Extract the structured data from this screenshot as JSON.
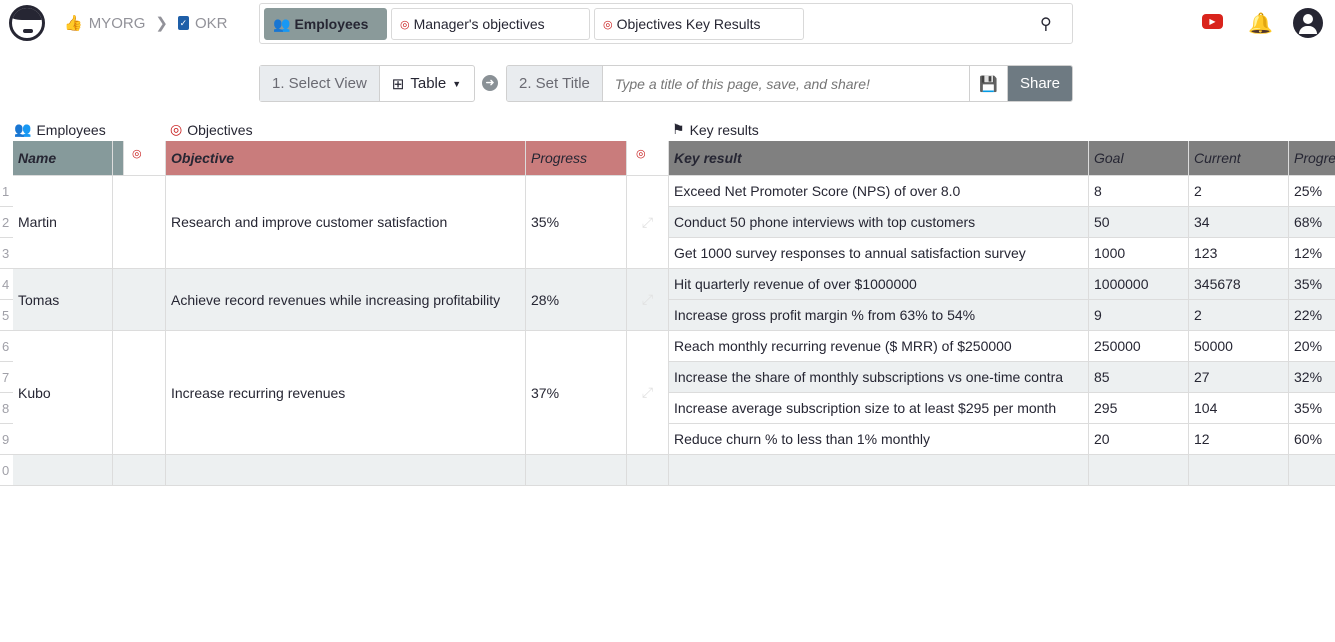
{
  "breadcrumb": {
    "org": "MYORG",
    "doc": "OKR"
  },
  "pages": [
    {
      "label": "Employees",
      "active": true
    },
    {
      "label": "Manager's objectives"
    },
    {
      "label": "Objectives Key Results"
    }
  ],
  "toolbar": {
    "step1": "1. Select View",
    "view": "Table",
    "step2": "2. Set Title",
    "title_placeholder": "Type a title of this page, save, and share!",
    "share": "Share"
  },
  "sections": {
    "employees": "Employees",
    "objectives": "Objectives",
    "key_results": "Key results"
  },
  "columns": {
    "name": "Name",
    "objective": "Objective",
    "progress": "Progress",
    "key_result": "Key result",
    "goal": "Goal",
    "current": "Current",
    "kr_progress": "Progre"
  },
  "groups": [
    {
      "name": "Martin",
      "objective": "Research and improve customer satisfaction",
      "progress": "35%",
      "rows": 3
    },
    {
      "name": "Tomas",
      "objective": "Achieve record revenues while increasing profitability",
      "progress": "28%",
      "rows": 2
    },
    {
      "name": "Kubo",
      "objective": "Increase recurring revenues",
      "progress": "37%",
      "rows": 4
    }
  ],
  "key_results": [
    [
      "Exceed Net Promoter Score (NPS) of over 8.0",
      "8",
      "2",
      "25%"
    ],
    [
      "Conduct 50 phone interviews with top customers",
      "50",
      "34",
      "68%"
    ],
    [
      "Get 1000 survey responses to annual satisfaction survey",
      "1000",
      "123",
      "12%"
    ],
    [
      "Hit quarterly revenue of over $1000000",
      "1000000",
      "345678",
      "35%"
    ],
    [
      "Increase gross profit margin % from 63% to 54%",
      "9",
      "2",
      "22%"
    ],
    [
      "Reach monthly recurring revenue ($ MRR) of $250000",
      "250000",
      "50000",
      "20%"
    ],
    [
      "Increase the share of monthly subscriptions vs one-time contra",
      "85",
      "27",
      "32%"
    ],
    [
      "Increase average subscription size to at least $295 per month",
      "295",
      "104",
      "35%"
    ],
    [
      "Reduce churn % to less than 1% monthly",
      "20",
      "12",
      "60%"
    ]
  ],
  "row_numbers": [
    "1",
    "2",
    "3",
    "4",
    "5",
    "6",
    "7",
    "8",
    "9",
    "0"
  ],
  "colors": {
    "employees_header": "#869a9b",
    "objectives_header": "#c97c7c",
    "kr_header": "#808080",
    "accent_red": "#c81d1d",
    "share_bg": "#6e7a82"
  }
}
